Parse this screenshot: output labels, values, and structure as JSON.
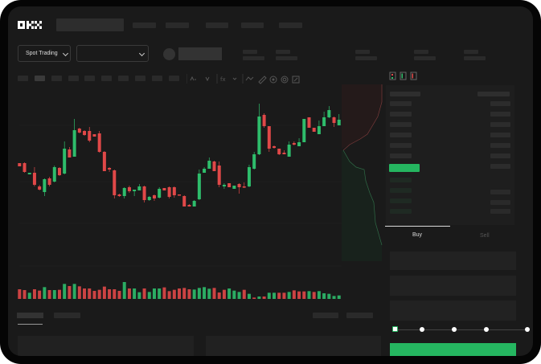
{
  "brand": {
    "logo_text": "OKX"
  },
  "market_bar": {
    "mode_label": "Spot Trading"
  },
  "order_form": {
    "tabs": [
      {
        "label": "Buy",
        "active": true
      },
      {
        "label": "Sell",
        "active": false
      }
    ],
    "leverage_slider_value": 0,
    "buy_color": "#25b660"
  },
  "colors": {
    "up": "#2ebd6b",
    "down": "#e04848",
    "background": "#1a1a1a"
  },
  "toolbar_icons": [
    "candle-type-icon",
    "indicator-icon",
    "fx-icon",
    "line-icon",
    "draw-icon",
    "camera-icon",
    "settings-icon",
    "fullscreen-icon"
  ],
  "orderbook_icons": [
    "orderbook-both-icon",
    "orderbook-bids-icon",
    "orderbook-asks-icon"
  ],
  "chart_data": {
    "type": "candlestick",
    "grid": true,
    "candles": [
      [
        67,
        67,
        63,
        63
      ],
      [
        67,
        68,
        55,
        56
      ],
      [
        53,
        55,
        53,
        55
      ],
      [
        55,
        62,
        38,
        40
      ],
      [
        38,
        40,
        33,
        34
      ],
      [
        31,
        48,
        26,
        47
      ],
      [
        48,
        50,
        38,
        40
      ],
      [
        44,
        64,
        43,
        62
      ],
      [
        61,
        62,
        51,
        52
      ],
      [
        54,
        94,
        53,
        85
      ],
      [
        84,
        87,
        74,
        74
      ],
      [
        75,
        122,
        75,
        108
      ],
      [
        110,
        111,
        104,
        105
      ],
      [
        107,
        108,
        101,
        102
      ],
      [
        107,
        112,
        93,
        95
      ],
      [
        103,
        103,
        100,
        100
      ],
      [
        104,
        107,
        80,
        81
      ],
      [
        81,
        82,
        57,
        57
      ],
      [
        61,
        62,
        56,
        59
      ],
      [
        58,
        59,
        23,
        27
      ],
      [
        28,
        29,
        25,
        26
      ],
      [
        26,
        37,
        23,
        36
      ],
      [
        37,
        39,
        30,
        32
      ],
      [
        32,
        34,
        26,
        34
      ],
      [
        33,
        41,
        33,
        38
      ],
      [
        38,
        39,
        18,
        21
      ],
      [
        21,
        26,
        20,
        25
      ],
      [
        27,
        28,
        20,
        23
      ],
      [
        24,
        37,
        23,
        35
      ],
      [
        36,
        36,
        33,
        33
      ],
      [
        37,
        38,
        23,
        25
      ],
      [
        37,
        38,
        24,
        27
      ],
      [
        28,
        28,
        27,
        27
      ],
      [
        26,
        27,
        13,
        13
      ],
      [
        15,
        16,
        13,
        13
      ],
      [
        13,
        21,
        13,
        20
      ],
      [
        22,
        59,
        21,
        54
      ],
      [
        55,
        62,
        55,
        60
      ],
      [
        60,
        74,
        60,
        70
      ],
      [
        69,
        70,
        57,
        57
      ],
      [
        64,
        69,
        37,
        40
      ],
      [
        38,
        42,
        35,
        40
      ],
      [
        42,
        42,
        37,
        37
      ],
      [
        35,
        39,
        35,
        39
      ],
      [
        41,
        42,
        29,
        37
      ],
      [
        38,
        43,
        36,
        37
      ],
      [
        38,
        65,
        37,
        62
      ],
      [
        60,
        81,
        59,
        78
      ],
      [
        78,
        141,
        77,
        125
      ],
      [
        127,
        129,
        111,
        113
      ],
      [
        113,
        113,
        81,
        85
      ],
      [
        88,
        89,
        85,
        86
      ],
      [
        85,
        85,
        77,
        78
      ],
      [
        80,
        83,
        78,
        78
      ],
      [
        75,
        94,
        75,
        90
      ],
      [
        92,
        94,
        89,
        90
      ],
      [
        88,
        98,
        88,
        93
      ],
      [
        93,
        122,
        93,
        122
      ],
      [
        124,
        124,
        111,
        111
      ],
      [
        111,
        111,
        106,
        106
      ],
      [
        103,
        120,
        103,
        113
      ],
      [
        113,
        131,
        113,
        124
      ],
      [
        124,
        138,
        123,
        133
      ],
      [
        124,
        125,
        112,
        117
      ],
      [
        114,
        128,
        114,
        121
      ]
    ],
    "candle_format": [
      "open",
      "high",
      "low",
      "close"
    ],
    "volume": [
      36,
      33,
      23,
      36,
      31,
      44,
      33,
      33,
      34,
      56,
      48,
      56,
      47,
      39,
      39,
      30,
      34,
      46,
      36,
      36,
      30,
      63,
      39,
      39,
      25,
      39,
      26,
      39,
      39,
      43,
      29,
      34,
      39,
      41,
      36,
      35,
      41,
      44,
      38,
      41,
      24,
      34,
      39,
      31,
      26,
      34,
      19,
      5,
      9,
      9,
      23,
      23,
      23,
      23,
      26,
      32,
      28,
      28,
      29,
      26,
      29,
      21,
      19,
      11,
      13
    ],
    "volume_up": [
      0,
      0,
      1,
      0,
      0,
      1,
      0,
      1,
      0,
      1,
      0,
      1,
      0,
      0,
      0,
      0,
      0,
      0,
      0,
      0,
      0,
      1,
      0,
      1,
      1,
      0,
      1,
      1,
      1,
      0,
      0,
      0,
      0,
      0,
      0,
      1,
      1,
      1,
      1,
      0,
      0,
      0,
      1,
      1,
      1,
      0,
      1,
      0,
      1,
      0,
      1,
      1,
      0,
      0,
      1,
      0,
      0,
      0,
      1,
      0,
      1,
      1,
      1,
      1,
      1
    ]
  }
}
